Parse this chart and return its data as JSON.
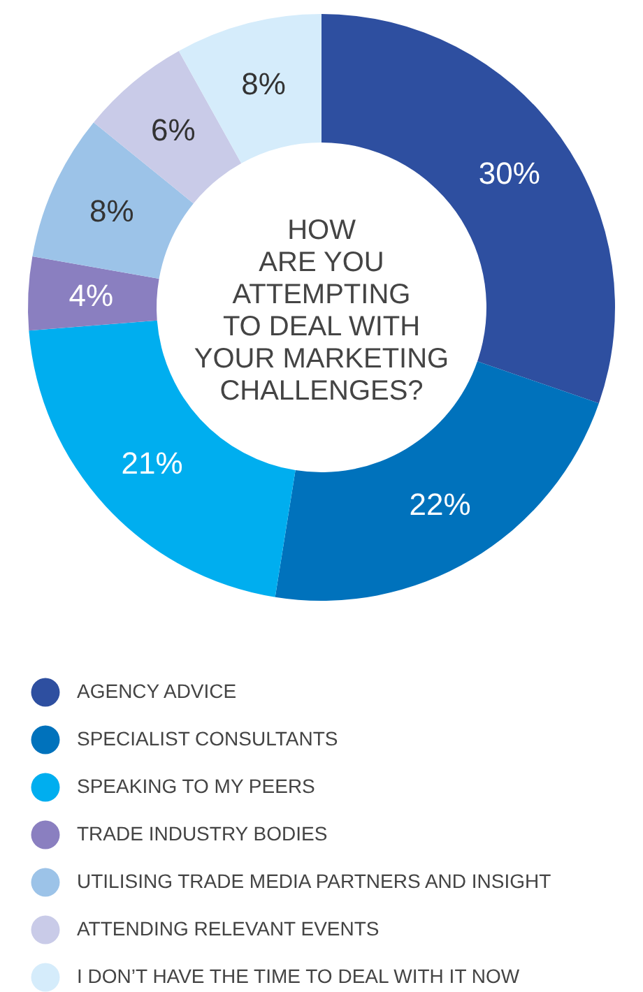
{
  "chart_data": {
    "type": "donut",
    "title": "HOW\nARE YOU\nATTEMPTING\nTO DEAL WITH\nYOUR MARKETING\nCHALLENGES?",
    "categories": [
      "AGENCY ADVICE",
      "SPECIALIST CONSULTANTS",
      "SPEAKING TO MY PEERS",
      "TRADE INDUSTRY BODIES",
      "UTILISING TRADE MEDIA PARTNERS AND INSIGHT",
      "ATTENDING RELEVANT EVENTS",
      "I DON’T HAVE THE TIME TO DEAL WITH IT NOW"
    ],
    "values": [
      30,
      22,
      21,
      4,
      8,
      6,
      8
    ],
    "colors": [
      "#2e4fa0",
      "#0072bc",
      "#00aeef",
      "#8a7fc0",
      "#9cc3e8",
      "#c9cbe8",
      "#d5ecfb"
    ],
    "value_labels": [
      "30%",
      "22%",
      "21%",
      "4%",
      "8%",
      "6%",
      "8%"
    ],
    "legend": "bottom"
  }
}
